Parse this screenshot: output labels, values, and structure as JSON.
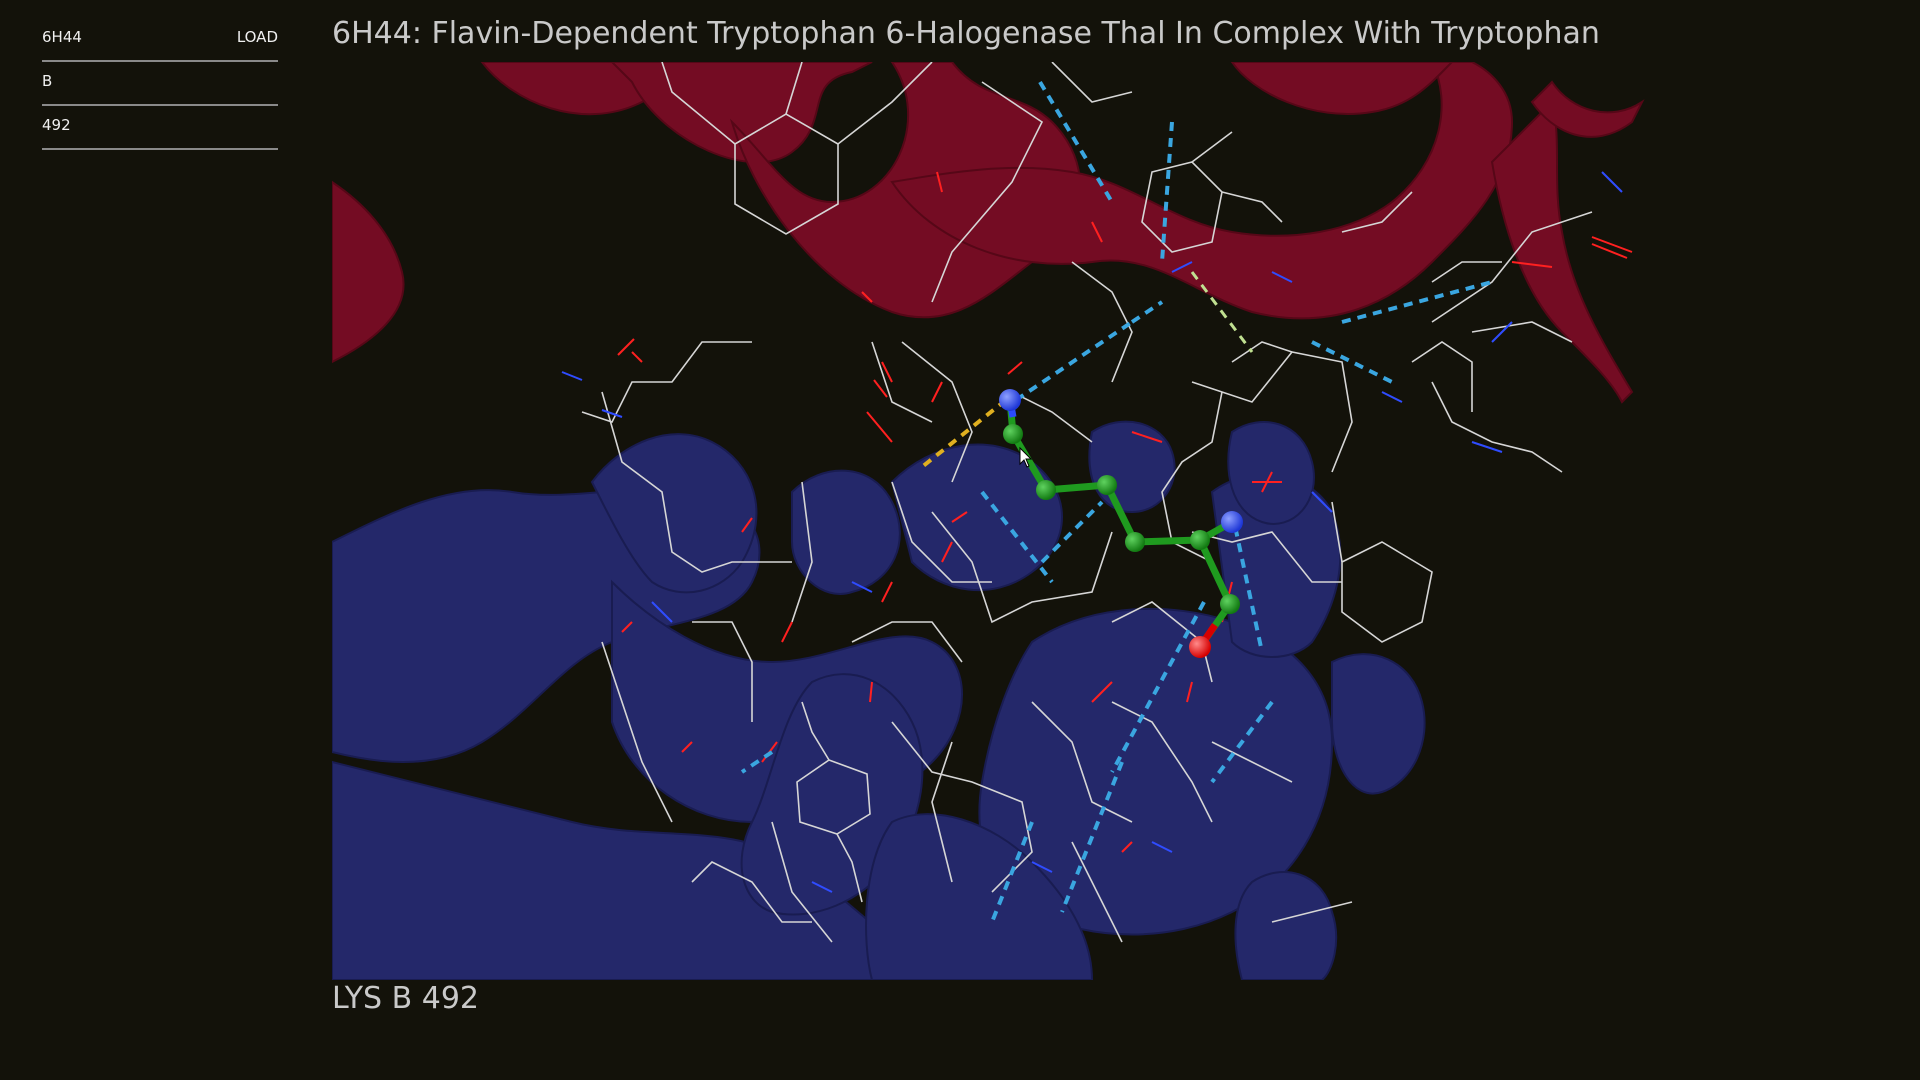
{
  "controls": {
    "pdb_id": "6H44",
    "load_label": "LOAD",
    "chain": "B",
    "residue_number": "492"
  },
  "title": "6H44: Flavin-Dependent Tryptophan 6-Halogenase Thal In Complex With Tryptophan",
  "selected_residue": "LYS B 492",
  "colors": {
    "background": "#13120a",
    "chain_a_ribbon": "#8b0f2a",
    "chain_b_ribbon": "#2a2f80",
    "carbon_highlight": "#1f9a1f",
    "nitrogen": "#2b4bff",
    "oxygen": "#ff1a1a",
    "hbond": "#3aa6e0",
    "salt_bridge": "#e0b020",
    "wire": "#d8d8d8"
  },
  "icons": [
    "mouse-cursor-icon"
  ]
}
